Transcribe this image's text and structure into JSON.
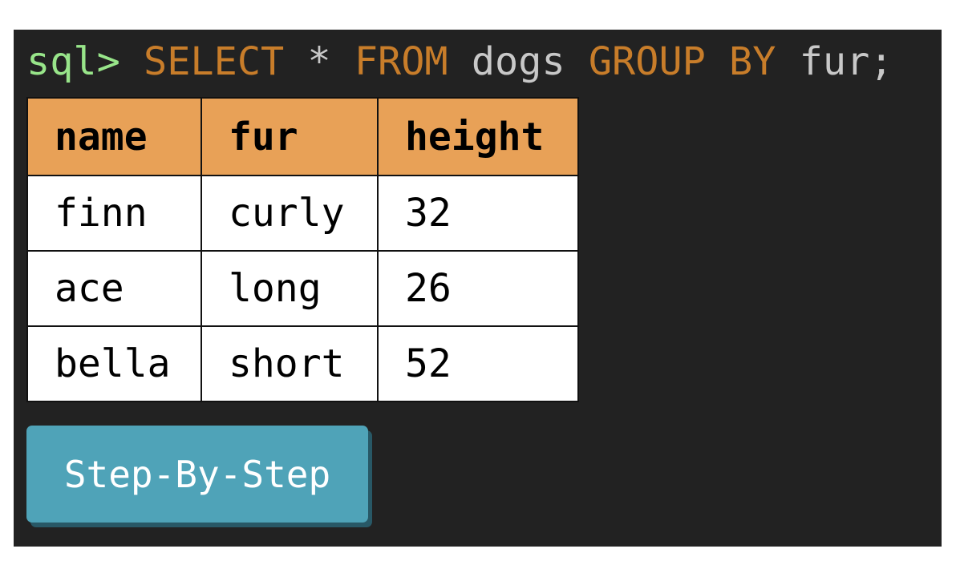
{
  "query": {
    "prompt": "sql>",
    "tokens": [
      {
        "text": "SELECT",
        "color": "#c87d2a"
      },
      {
        "text": "*",
        "color": "#c8c8c8"
      },
      {
        "text": "FROM",
        "color": "#c87d2a"
      },
      {
        "text": "dogs",
        "color": "#c8c8c8"
      },
      {
        "text": "GROUP BY",
        "color": "#c87d2a"
      },
      {
        "text": "fur;",
        "color": "#c8c8c8"
      }
    ],
    "prompt_color": "#98e58a"
  },
  "table": {
    "headers": [
      "name",
      "fur",
      "height"
    ],
    "rows": [
      [
        "finn",
        "curly",
        "32"
      ],
      [
        "ace",
        "long",
        "26"
      ],
      [
        "bella",
        "short",
        "52"
      ]
    ],
    "header_color": "#e8a157"
  },
  "button": {
    "label": "Step-By-Step",
    "color": "#4fa3b8"
  }
}
